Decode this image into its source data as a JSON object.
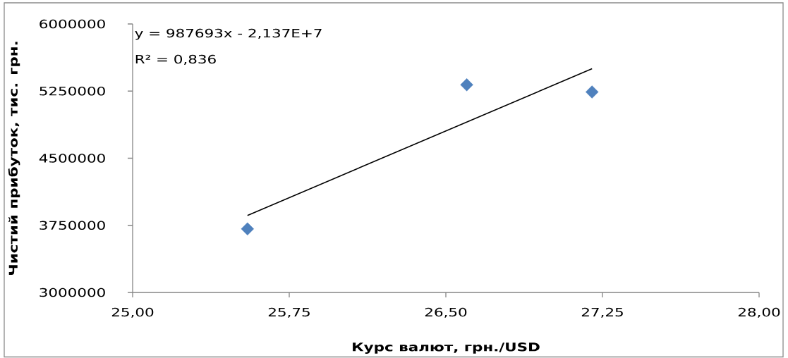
{
  "chart_data": {
    "type": "scatter",
    "xlabel": "Курс валют, грн./USD",
    "ylabel": "Чистий прибуток, тис. грн.",
    "annotations": [
      "y = 987693x - 2,137E+7",
      "R² = 0,836"
    ],
    "series": [
      {
        "type": "scatter",
        "color": "#4f81bd",
        "marker": "diamond",
        "x": [
          25.55,
          26.6,
          27.2
        ],
        "values": [
          3710000,
          5320000,
          5240000
        ]
      },
      {
        "type": "line",
        "color": "#000000",
        "marker": "none",
        "line_style": "solid",
        "x": [
          25.55,
          27.2
        ],
        "values": [
          3860000,
          5500000
        ]
      }
    ],
    "xlim": [
      25,
      28
    ],
    "xticks": [
      {
        "value": 25,
        "label": "25,00"
      },
      {
        "value": 25.75,
        "label": "25,75"
      },
      {
        "value": 26.5,
        "label": "26,50"
      },
      {
        "value": 27.25,
        "label": "27,25"
      },
      {
        "value": 28,
        "label": "28,00"
      }
    ],
    "ylim": [
      3000000,
      6000000
    ],
    "yticks": [
      3000000,
      3750000,
      4500000,
      5250000,
      6000000
    ]
  }
}
